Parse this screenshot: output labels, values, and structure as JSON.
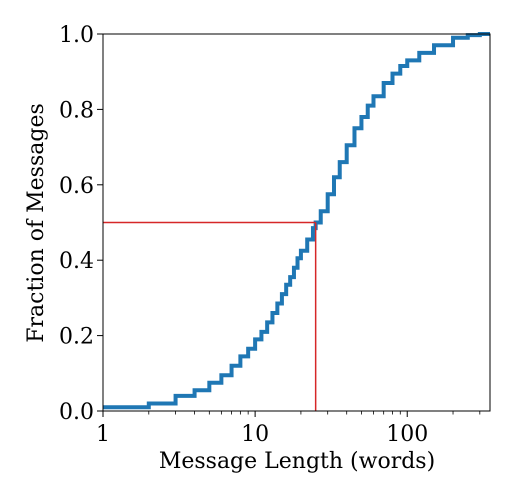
{
  "chart_data": {
    "type": "line",
    "title": "",
    "xlabel": "Message Length (words)",
    "ylabel": "Fraction of Messages",
    "x_scale": "log",
    "xlim": [
      1,
      350
    ],
    "ylim": [
      0,
      1
    ],
    "x_ticks": [
      1,
      10,
      100
    ],
    "x_tick_labels": [
      "1",
      "10",
      "100"
    ],
    "y_ticks": [
      0,
      0.2,
      0.4,
      0.6,
      0.8,
      1.0
    ],
    "y_tick_labels": [
      "0.0",
      "0.2",
      "0.4",
      "0.6",
      "0.8",
      "1.0"
    ],
    "grid": false,
    "legend": "none",
    "series": [
      {
        "color": "#1f77b4",
        "style": "step",
        "x": [
          1,
          2,
          3,
          4,
          5,
          6,
          7,
          8,
          9,
          10,
          11,
          12,
          13,
          14,
          15,
          16,
          17,
          18,
          19,
          20,
          22,
          24,
          25,
          27,
          30,
          33,
          36,
          40,
          45,
          50,
          55,
          60,
          70,
          80,
          90,
          100,
          120,
          150,
          200,
          250,
          300,
          350
        ],
        "y": [
          0.01,
          0.02,
          0.04,
          0.055,
          0.075,
          0.095,
          0.12,
          0.145,
          0.165,
          0.19,
          0.21,
          0.235,
          0.26,
          0.285,
          0.31,
          0.335,
          0.355,
          0.38,
          0.405,
          0.425,
          0.455,
          0.485,
          0.5,
          0.53,
          0.575,
          0.62,
          0.66,
          0.705,
          0.75,
          0.78,
          0.81,
          0.835,
          0.87,
          0.895,
          0.915,
          0.93,
          0.95,
          0.97,
          0.99,
          0.997,
          1.0,
          1.0
        ]
      }
    ],
    "reference_point": {
      "x": 25,
      "y": 0.5,
      "color": "#d62728"
    }
  }
}
